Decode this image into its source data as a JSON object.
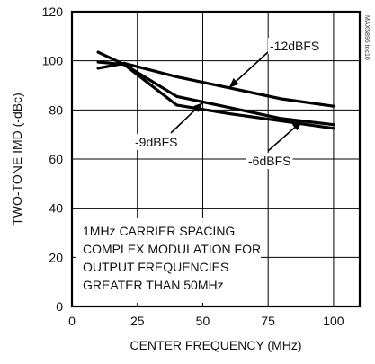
{
  "side_label": "MAX5895 toc10",
  "chart_data": {
    "type": "line",
    "xlabel": "CENTER FREQUENCY (MHz)",
    "ylabel": "TWO-TONE IMD (-dBc)",
    "xlim": [
      0,
      110
    ],
    "ylim": [
      0,
      120
    ],
    "x_ticks": [
      0,
      25,
      50,
      75,
      100
    ],
    "y_ticks": [
      0,
      20,
      40,
      60,
      80,
      100,
      120
    ],
    "grid": true,
    "series": [
      {
        "name": "-12dBFS",
        "x": [
          10,
          20,
          40,
          60,
          80,
          100
        ],
        "y": [
          97,
          99,
          93.5,
          89,
          84.5,
          81.5
        ]
      },
      {
        "name": "-9dBFS",
        "x": [
          10,
          20,
          40,
          60,
          80,
          100
        ],
        "y": [
          103.5,
          98.5,
          82,
          78.5,
          75.5,
          72.5
        ]
      },
      {
        "name": "-6dBFS",
        "x": [
          10,
          20,
          40,
          60,
          80,
          100
        ],
        "y": [
          99.5,
          98.5,
          85.5,
          81,
          76.5,
          74
        ]
      }
    ],
    "annotations": [
      {
        "text": "-12dBFS",
        "arrow_to": [
          60,
          89
        ]
      },
      {
        "text": "-9dBFS",
        "arrow_to": [
          50,
          83
        ]
      },
      {
        "text": "-6dBFS",
        "arrow_to": [
          88,
          75.5
        ]
      }
    ],
    "note_lines": [
      "1MHz CARRIER SPACING",
      "COMPLEX MODULATION FOR",
      "OUTPUT FREQUENCIES",
      "GREATER THAN 50MHz"
    ]
  }
}
